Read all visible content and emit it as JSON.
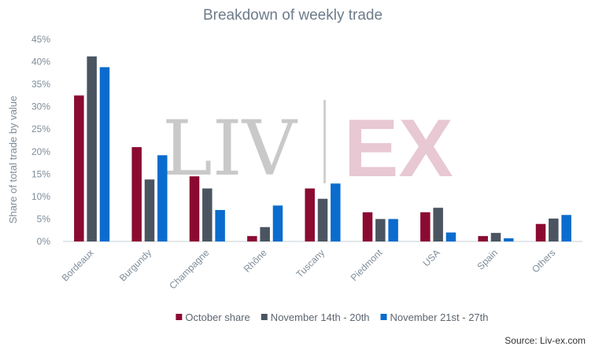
{
  "chart_data": {
    "type": "bar",
    "title": "Breakdown of weekly trade",
    "xlabel": "",
    "ylabel": "Share of total trade by value",
    "ylim": [
      0,
      45
    ],
    "yticks": [
      "0%",
      "5%",
      "10%",
      "15%",
      "20%",
      "25%",
      "30%",
      "35%",
      "40%",
      "45%"
    ],
    "categories": [
      "Bordeaux",
      "Burgundy",
      "Champagne",
      "Rhône",
      "Tuscany",
      "Piedmont",
      "USA",
      "Spain",
      "Others"
    ],
    "series": [
      {
        "name": "October share",
        "color": "#8b0a32",
        "values": [
          32.5,
          21.0,
          14.5,
          1.2,
          11.8,
          6.5,
          6.5,
          1.2,
          3.9
        ]
      },
      {
        "name": "November 14th - 20th",
        "color": "#4a5561",
        "values": [
          41.2,
          13.8,
          11.8,
          3.2,
          9.5,
          5.0,
          7.5,
          1.9,
          5.1
        ]
      },
      {
        "name": "November 21st - 27th",
        "color": "#0a6cce",
        "values": [
          38.8,
          19.2,
          7.0,
          8.0,
          12.9,
          5.0,
          2.0,
          0.7,
          5.9
        ]
      }
    ],
    "legend_position": "bottom-center",
    "grid": false
  },
  "watermark": {
    "left": "LIV",
    "right": "EX"
  },
  "source": "Source: Liv-ex.com"
}
